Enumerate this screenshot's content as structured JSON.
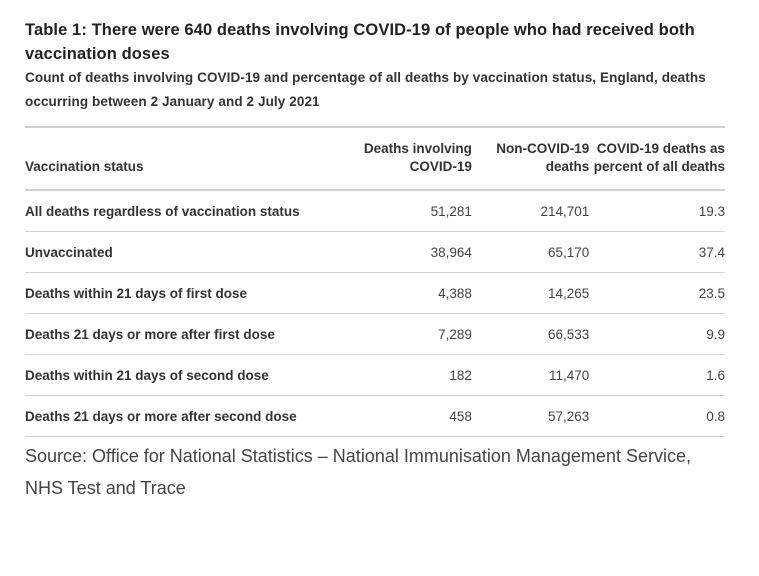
{
  "title": "Table 1: There were 640 deaths involving COVID-19 of people who had received both vaccination doses",
  "subtitle": "Count of deaths involving COVID-19 and percentage of all deaths by vaccination status, England, deaths occurring between 2 January and 2 July 2021",
  "table": {
    "headers": [
      "Vaccination status",
      "Deaths involving COVID-19",
      "Non-COVID-19 deaths",
      "COVID-19 deaths as percent of all deaths"
    ],
    "rows": [
      [
        "All deaths regardless of vaccination status",
        "51,281",
        "214,701",
        "19.3"
      ],
      [
        "Unvaccinated",
        "38,964",
        "65,170",
        "37.4"
      ],
      [
        "Deaths within 21 days of first dose",
        "4,388",
        "14,265",
        "23.5"
      ],
      [
        "Deaths 21 days or more after first dose",
        "7,289",
        "66,533",
        "9.9"
      ],
      [
        "Deaths within 21 days of second dose",
        "182",
        "11,470",
        "1.6"
      ],
      [
        "Deaths 21 days or more after second dose",
        "458",
        "57,263",
        "0.8"
      ]
    ]
  },
  "source": "Source: Office for National Statistics – National Immunisation Management Service, NHS Test and Trace"
}
